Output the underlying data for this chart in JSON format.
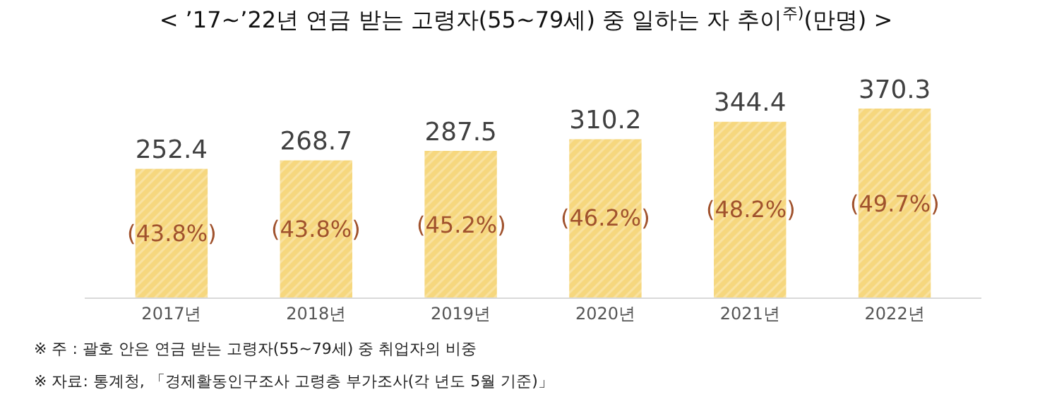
{
  "chart_data": {
    "type": "bar",
    "title": "< ’17~’22년 연금 받는 고령자(55~79세) 중 일하는 자 추이$^{주)}$(만명) >",
    "categories": [
      "2017년",
      "2018년",
      "2019년",
      "2020년",
      "2021년",
      "2022년"
    ],
    "values": [
      252.4,
      268.7,
      287.5,
      310.2,
      344.4,
      370.3
    ],
    "color": "#f6d77e",
    "data_labels": true,
    "tick_labels": "x",
    "legend": false,
    "annotations": [
      "(43.8%)",
      "(43.8%)",
      "(45.2%)",
      "(46.2%)",
      "(48.2%)",
      "(49.7%)",
      "※ 주 : 괄호 안은 연금 받는 고령자(55~79세) 중 취업자의 비중",
      "※ 자료: 통계청, 「경제활동인구조사 고령층 부가조사(각 년도 5월 기준)」"
    ]
  }
}
